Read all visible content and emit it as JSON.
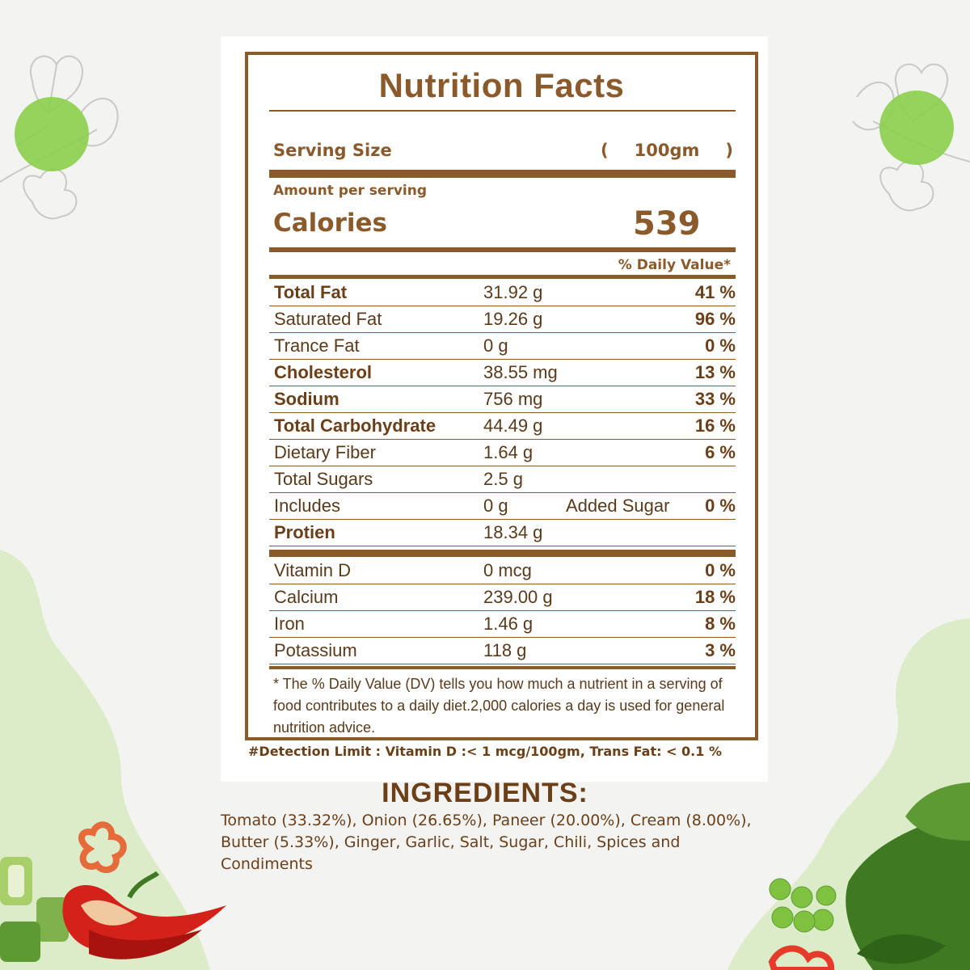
{
  "colors": {
    "brand_brown": "#8a5a2b",
    "text_brown": "#6b3f18",
    "accent_green": "#8ccf4d",
    "pale_green": "#dcecc8",
    "background": "#f3f3f1"
  },
  "label": {
    "title": "Nutrition Facts",
    "serving_size_label": "Serving Size",
    "serving_open": "(",
    "serving_value": "100gm",
    "serving_close": ")",
    "amount_per_serving": "Amount per serving",
    "calories_label": "Calories",
    "calories_value": "539",
    "daily_value_header": "% Daily Value*",
    "nutrients": [
      {
        "name": "Total Fat",
        "amount": "31.92 g",
        "extra": "",
        "percent": "41 %",
        "bold": true
      },
      {
        "name": "Saturated Fat",
        "amount": "19.26 g",
        "extra": "",
        "percent": "96 %",
        "bold": false
      },
      {
        "name": "Trance Fat",
        "amount": "0 g",
        "extra": "",
        "percent": "0 %",
        "bold": false
      },
      {
        "name": "Cholesterol",
        "amount": "38.55 mg",
        "extra": "",
        "percent": "13 %",
        "bold": true
      },
      {
        "name": "Sodium",
        "amount": "756 mg",
        "extra": "",
        "percent": "33 %",
        "bold": true
      },
      {
        "name": "Total Carbohydrate",
        "amount": "44.49 g",
        "extra": "",
        "percent": "16 %",
        "bold": true
      },
      {
        "name": "Dietary Fiber",
        "amount": "1.64 g",
        "extra": "",
        "percent": "6 %",
        "bold": false
      },
      {
        "name": "Total Sugars",
        "amount": "2.5 g",
        "extra": "",
        "percent": "",
        "bold": false
      },
      {
        "name": "Includes",
        "amount": "0 g",
        "extra": "Added Sugar",
        "percent": "0 %",
        "bold": false
      },
      {
        "name": "Protien",
        "amount": "18.34 g",
        "extra": "",
        "percent": "",
        "bold": true
      }
    ],
    "vitamins": [
      {
        "name": "Vitamin D",
        "amount": "0 mcg",
        "percent": "0 %"
      },
      {
        "name": "Calcium",
        "amount": "239.00 g",
        "percent": "18 %"
      },
      {
        "name": "Iron",
        "amount": "1.46 g",
        "percent": "8 %"
      },
      {
        "name": "Potassium",
        "amount": "118 g",
        "percent": "3 %"
      }
    ],
    "footnote": "* The % Daily Value (DV) tells you how much a nutrient in a serving of food contributes to a daily diet.2,000 calories a day is used for general nutrition advice.",
    "detection_limit": "#Detection Limit : Vitamin D :< 1 mcg/100gm, Trans Fat: < 0.1 %"
  },
  "ingredients": {
    "title": "INGREDIENTS:",
    "text": "Tomato (33.32%), Onion (26.65%), Paneer (20.00%), Cream (8.00%), Butter (5.33%), Ginger, Garlic, Salt, Sugar, Chili, Spices and Condiments"
  },
  "decorations": [
    "leaf-sketch-icon",
    "chili-pepper-icon",
    "green-peas-icon",
    "spring-onion-icon",
    "bell-pepper-ring-icon",
    "leafy-greens-icon"
  ]
}
